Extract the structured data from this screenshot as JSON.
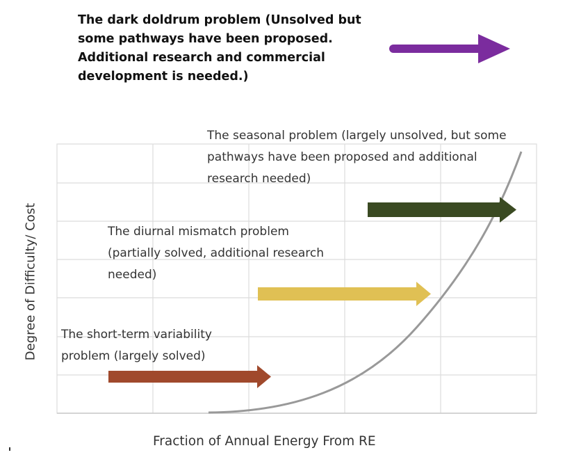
{
  "top_note": "The dark doldrum problem (Unsolved but some pathways have been proposed. Additional research and commercial development is needed.)",
  "labels": {
    "seasonal": "The seasonal problem (largely unsolved, but some pathways have been proposed and additional research needed)",
    "diurnal": "The diurnal mismatch problem (partially solved, additional research needed)",
    "short_term": "The short-term variability problem (largely solved)"
  },
  "axes": {
    "y_label": "Degree of Difficulty/ Cost",
    "x_label": "Fraction of Annual Energy From RE"
  },
  "colors": {
    "dark_doldrum_arrow": "#7B2C9E",
    "seasonal_arrow": "#3A4A22",
    "diurnal_arrow": "#E0C054",
    "short_term_arrow": "#A0492C",
    "curve": "#999999",
    "grid": "#DCDCDC"
  }
}
